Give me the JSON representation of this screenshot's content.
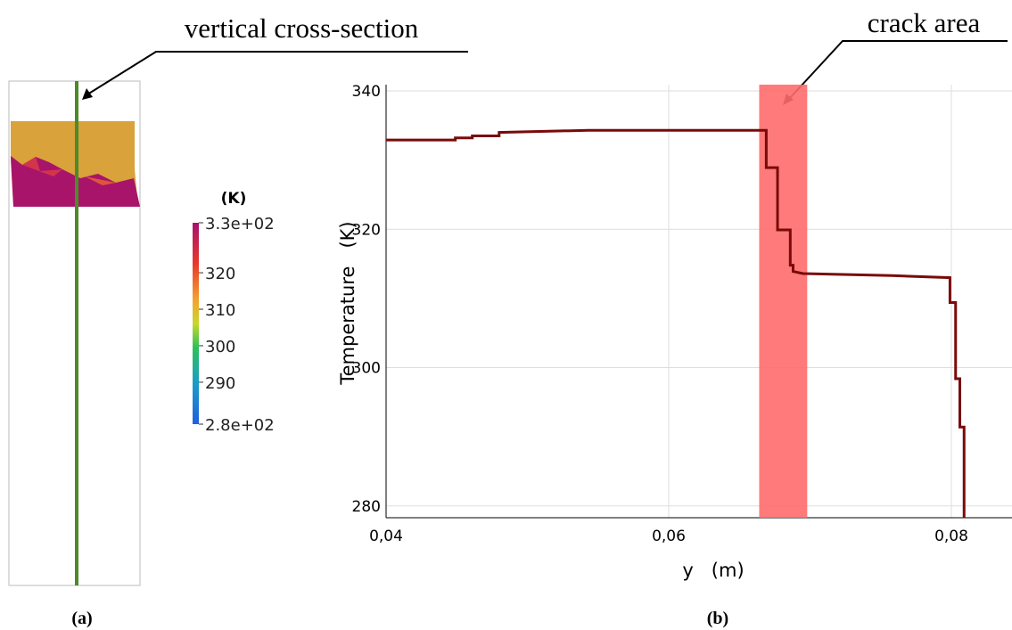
{
  "chart_data": [
    {
      "type": "field-render",
      "annotation": "vertical cross-section",
      "panel_label": "(a)",
      "colorbar_title": "(K)",
      "clim": [
        278.5,
        333.7
      ],
      "colorbar_ticks": [
        {
          "value": 333.7,
          "label": "3.3e+02"
        },
        320,
        310,
        300,
        290,
        {
          "value": 278.5,
          "label": "2.8e+02"
        }
      ]
    },
    {
      "type": "line",
      "annotation": "crack area",
      "panel_label": "(b)",
      "x_label": "y   (m)",
      "y_label": "Temperature   (K)",
      "xlim": [
        0.04,
        0.0843
      ],
      "ylim": [
        278.3,
        340.9
      ],
      "xticks": [
        {
          "value": 0.04,
          "label": "0,04"
        },
        {
          "value": 0.06,
          "label": "0,06"
        },
        {
          "value": 0.08,
          "label": "0,08"
        }
      ],
      "yticks": [
        280,
        300,
        320,
        340
      ],
      "grid": true,
      "highlight": {
        "xrange": [
          0.0664,
          0.0698
        ],
        "color": "#ff6b6b"
      },
      "series": [
        {
          "color": "#7a0a0a",
          "x": [
            0.04,
            0.0449,
            0.0449,
            0.0461,
            0.0461,
            0.048,
            0.048,
            0.0543,
            0.0669,
            0.0669,
            0.0677,
            0.0677,
            0.0686,
            0.0686,
            0.0688,
            0.0688,
            0.0695,
            0.0758,
            0.0799,
            0.0799,
            0.0803,
            0.0803,
            0.0806,
            0.0806,
            0.0809,
            0.0809
          ],
          "values": [
            332.9,
            332.9,
            333.2,
            333.2,
            333.5,
            333.5,
            334.0,
            334.3,
            334.3,
            328.9,
            328.9,
            319.9,
            319.9,
            314.8,
            314.8,
            313.9,
            313.6,
            313.3,
            313.0,
            309.4,
            309.4,
            298.4,
            298.4,
            291.4,
            291.4,
            275
          ]
        }
      ]
    }
  ]
}
